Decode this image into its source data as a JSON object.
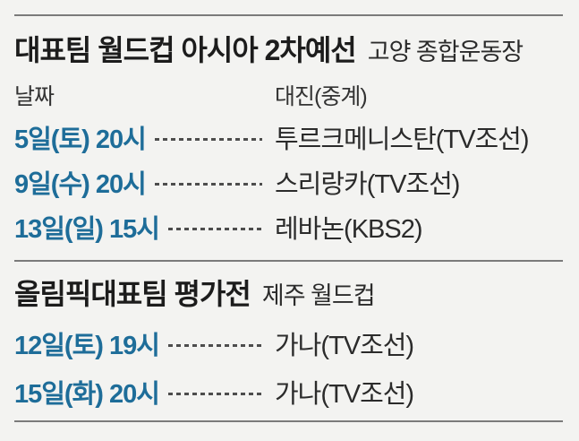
{
  "colors": {
    "background": "#f3f3f1",
    "accent_date_blue": "#1e6d99",
    "title_text": "#1c1c1c",
    "body_text": "#2b2b2b",
    "rule_gray": "#7b7b7b"
  },
  "chart_data": {
    "type": "table",
    "tables": [
      {
        "title": "대표팀 월드컵 아시아 2차예선",
        "subtitle": "고양 종합운동장",
        "columns": [
          "날짜",
          "대진(중계)"
        ],
        "rows": [
          {
            "date": "5일(토) 20시",
            "match": "투르크메니스탄(TV조선)"
          },
          {
            "date": "9일(수) 20시",
            "match": "스리랑카(TV조선)"
          },
          {
            "date": "13일(일) 15시",
            "match": "레바논(KBS2)"
          }
        ]
      },
      {
        "title": "올림픽대표팀 평가전",
        "subtitle": "제주 월드컵",
        "rows": [
          {
            "date": "12일(토) 19시",
            "match": "가나(TV조선)"
          },
          {
            "date": "15일(화) 20시",
            "match": "가나(TV조선)"
          }
        ]
      }
    ]
  }
}
